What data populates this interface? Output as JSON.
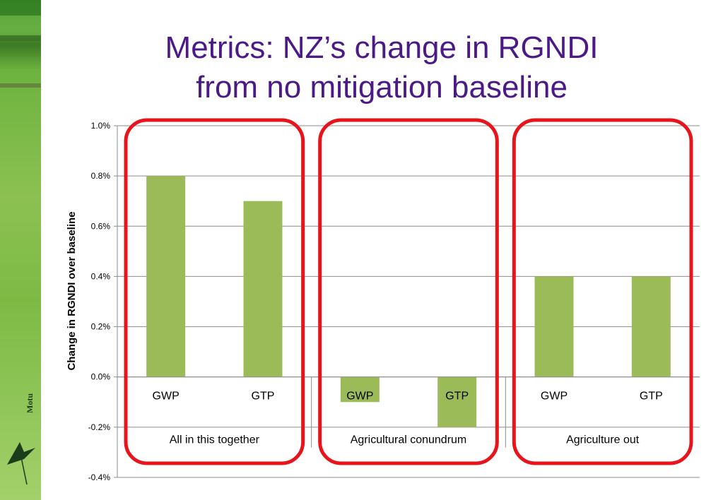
{
  "slide": {
    "title_line1": "Metrics: NZ’s change in RGNDI",
    "title_line2": "from no mitigation baseline",
    "logo_text": "Motu"
  },
  "colors": {
    "title": "#4b1a87",
    "bar": "#9bbb59",
    "highlight_box": "#e8141b",
    "grid": "#8c8c8c"
  },
  "chart_data": {
    "type": "bar",
    "title": "",
    "ylabel": "Change in RGNDI over baseline",
    "xlabel": "",
    "ylim": [
      -0.4,
      1.0
    ],
    "y_ticks": [
      -0.4,
      -0.2,
      0.0,
      0.2,
      0.4,
      0.6,
      0.8,
      1.0
    ],
    "y_tick_labels": [
      "-0.4%",
      "-0.2%",
      "0.0%",
      "0.2%",
      "0.4%",
      "0.6%",
      "0.8%",
      "1.0%"
    ],
    "grid": true,
    "groups": [
      {
        "name": "All in this together",
        "categories": [
          "GWP",
          "GTP"
        ],
        "values": [
          0.8,
          0.7
        ]
      },
      {
        "name": "Agricultural conundrum",
        "categories": [
          "GWP",
          "GTP"
        ],
        "values": [
          -0.1,
          -0.2
        ]
      },
      {
        "name": "Agriculture out",
        "categories": [
          "GWP",
          "GTP"
        ],
        "values": [
          0.4,
          0.4
        ]
      }
    ]
  }
}
